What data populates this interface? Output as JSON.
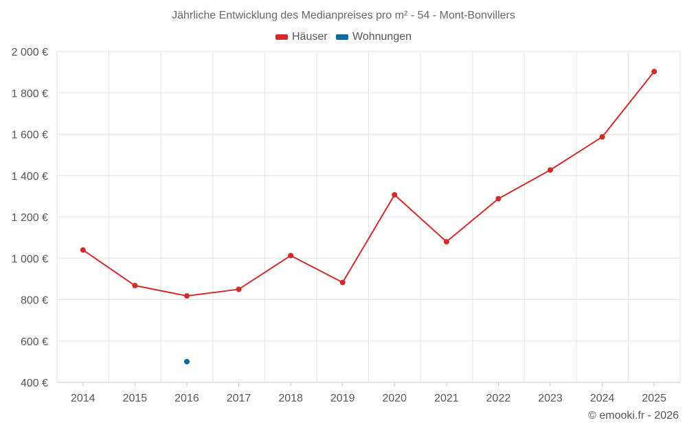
{
  "chart_data": {
    "type": "line",
    "title": "Jährliche Entwicklung des Medianpreises pro m² - 54 - Mont-Bonvillers",
    "categories": [
      "2014",
      "2015",
      "2016",
      "2017",
      "2018",
      "2019",
      "2020",
      "2021",
      "2022",
      "2023",
      "2024",
      "2025"
    ],
    "series": [
      {
        "name": "Häuser",
        "color": "#d32a2a",
        "values": [
          1040,
          868,
          818,
          850,
          1013,
          883,
          1307,
          1080,
          1288,
          1427,
          1587,
          1903
        ]
      },
      {
        "name": "Wohnungen",
        "color": "#0b6aa2",
        "values": [
          null,
          null,
          500,
          null,
          null,
          null,
          null,
          null,
          null,
          null,
          null,
          null
        ]
      }
    ],
    "ylim": [
      400,
      2000
    ],
    "yticks": [
      400,
      600,
      800,
      1000,
      1200,
      1400,
      1600,
      1800,
      2000
    ],
    "ytick_labels": [
      "400 €",
      "600 €",
      "800 €",
      "1 000 €",
      "1 200 €",
      "1 400 €",
      "1 600 €",
      "1 800 €",
      "2 000 €"
    ],
    "xlabel": "",
    "ylabel": "",
    "grid": true,
    "legend_position": "top-center"
  },
  "credit": "© emooki.fr - 2026"
}
